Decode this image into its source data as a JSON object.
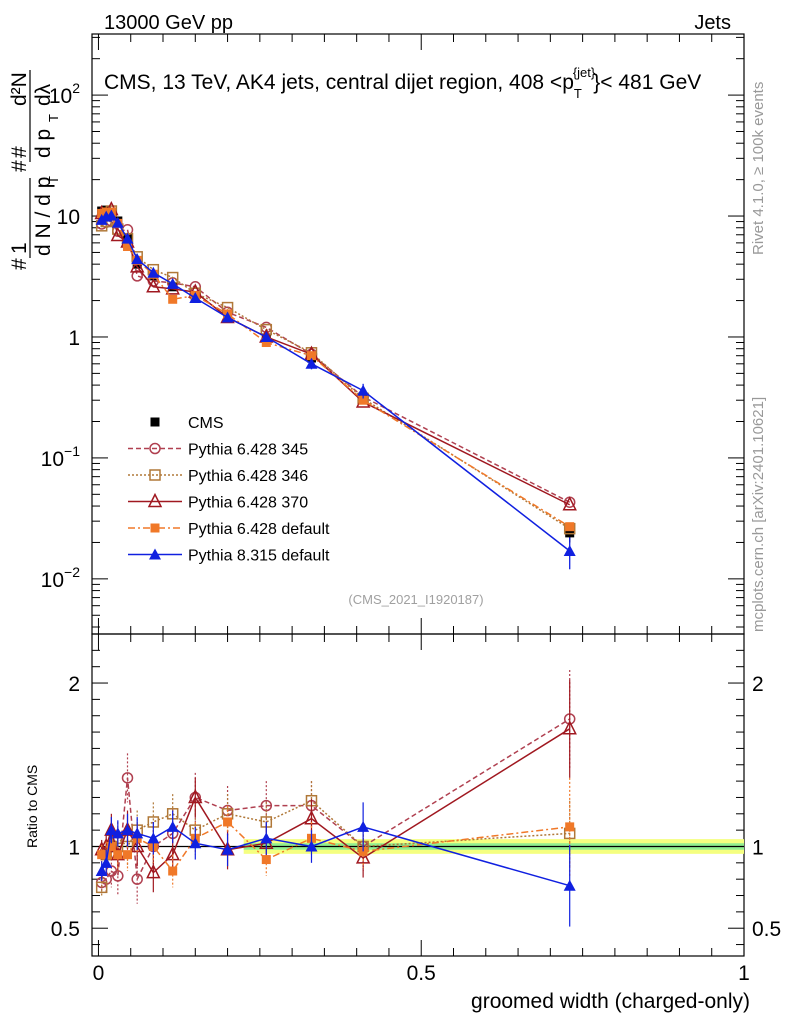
{
  "header": {
    "energy_label": "13000 GeV pp",
    "process_label": "Jets"
  },
  "side_labels": {
    "rivet": "Rivet 4.1.0, ≥ 100k events",
    "mcplots": "mcplots.cern.ch [arXiv:2401.10621]"
  },
  "analysis_id": "(CMS_2021_I1920187)",
  "chart_data": {
    "type": "line",
    "title": "CMS, 13 TeV, AK4 jets, central dijet region, 408 <p",
    "title_sub": "T",
    "title_sup": "{jet}",
    "title_tail": "}< 481 GeV",
    "xlabel": "groomed width (charged-only)",
    "ylabel_top": {
      "one": "1",
      "dn": "d N / d p",
      "hash": "#",
      "frac2_num": "d²N",
      "frac2_den": "d p",
      "dlambda": "dλ",
      "T": "T"
    },
    "ylabel_bottom": "Ratio to CMS",
    "x_range": [
      -0.01,
      1.0
    ],
    "x_ticks": [
      0,
      0.5,
      1
    ],
    "x_tick_labels": [
      "0",
      "0.5",
      "1"
    ],
    "main": {
      "scale": "log",
      "y_range": [
        0.0035,
        320
      ],
      "y_tick_values": [
        100,
        10,
        1,
        0.1,
        0.01
      ],
      "y_tick_labels": [
        {
          "base": "10",
          "exp": "2"
        },
        {
          "base": "10",
          "exp": ""
        },
        {
          "base": "1",
          "exp": ""
        },
        {
          "base": "10",
          "exp": "−1"
        },
        {
          "base": "10",
          "exp": "−2"
        }
      ]
    },
    "ratio": {
      "y_range": [
        0.33,
        2.3
      ],
      "y_ticks": [
        0.5,
        1,
        2
      ],
      "y_tick_labels": [
        "0.5",
        "1",
        "2"
      ],
      "band_outer": {
        "x": [
          0.225,
          1.0
        ],
        "lo": 0.955,
        "hi": 1.045
      },
      "band_inner": {
        "x": [
          0.225,
          1.0
        ],
        "lo": 0.98,
        "hi": 1.02
      }
    },
    "x": [
      0.005,
      0.012,
      0.02,
      0.03,
      0.045,
      0.06,
      0.085,
      0.115,
      0.15,
      0.2,
      0.26,
      0.33,
      0.41,
      0.73
    ],
    "series": [
      {
        "name": "CMS",
        "color": "#000000",
        "marker": "square-filled",
        "dash": "none",
        "values": [
          11,
          11.2,
          10.7,
          9.1,
          6.6,
          4.0,
          3.2,
          2.6,
          2.1,
          1.45,
          0.98,
          0.67,
          0.32,
          0.024
        ],
        "errors": [
          0.6,
          0.6,
          0.6,
          0.5,
          0.4,
          0.25,
          0.2,
          0.15,
          0.12,
          0.08,
          0.06,
          0.04,
          0.03,
          0.004
        ],
        "ratios": null
      },
      {
        "name": "Pythia 6.428 345",
        "color": "#b04050",
        "marker": "circle-open",
        "dash": "5,3",
        "values": [
          8.6,
          8.9,
          9.1,
          7.5,
          7.7,
          3.2,
          2.9,
          2.8,
          2.6,
          1.6,
          1.2,
          0.72,
          0.32,
          0.043
        ],
        "errors": null,
        "ratios": [
          0.78,
          0.8,
          0.85,
          0.82,
          1.42,
          0.8,
          1.0,
          1.08,
          1.3,
          1.22,
          1.25,
          1.25,
          1.0,
          1.78
        ],
        "ratio_errors": [
          0.06,
          0.08,
          0.1,
          0.12,
          0.15,
          0.15,
          0.15,
          0.15,
          0.15,
          0.15,
          0.15,
          0.15,
          0.15,
          0.3
        ]
      },
      {
        "name": "Pythia 6.428 346",
        "color": "#b07838",
        "marker": "square-open",
        "dash": "2,2",
        "values": [
          8.3,
          9.0,
          11.0,
          7.8,
          6.5,
          4.6,
          3.6,
          3.1,
          2.3,
          1.75,
          1.15,
          0.74,
          0.31,
          0.026
        ],
        "errors": null,
        "ratios": [
          0.75,
          0.95,
          1.0,
          1.05,
          1.0,
          1.1,
          1.15,
          1.2,
          1.1,
          1.2,
          1.15,
          1.28,
          1.0,
          1.08
        ],
        "ratio_errors": [
          0.06,
          0.08,
          0.08,
          0.1,
          0.12,
          0.12,
          0.12,
          0.12,
          0.12,
          0.12,
          0.12,
          0.12,
          0.12,
          0.2
        ]
      },
      {
        "name": "Pythia 6.428 370",
        "color": "#a01820",
        "marker": "triangle-open",
        "dash": "none",
        "values": [
          10.5,
          10.2,
          11.3,
          6.9,
          6.1,
          3.8,
          2.6,
          2.5,
          2.35,
          1.45,
          1.0,
          0.72,
          0.29,
          0.041
        ],
        "errors": null,
        "ratios": [
          0.98,
          1.0,
          1.1,
          0.95,
          1.1,
          1.0,
          0.84,
          0.95,
          1.3,
          0.98,
          1.02,
          1.17,
          0.93,
          1.72
        ],
        "ratio_errors": [
          0.06,
          0.08,
          0.1,
          0.1,
          0.12,
          0.12,
          0.12,
          0.12,
          0.12,
          0.12,
          0.12,
          0.12,
          0.12,
          0.3
        ]
      },
      {
        "name": "Pythia 6.428 default",
        "color": "#f07828",
        "marker": "square-filled",
        "dash": "7,3,2,3",
        "values": [
          10.5,
          10.8,
          10.8,
          8.7,
          5.6,
          4.3,
          3.3,
          2.05,
          2.2,
          1.55,
          0.9,
          0.7,
          0.3,
          0.027
        ],
        "errors": null,
        "ratios": [
          0.95,
          0.95,
          1.0,
          0.95,
          0.95,
          1.05,
          1.0,
          0.85,
          1.05,
          1.15,
          0.92,
          1.05,
          0.97,
          1.12
        ],
        "ratio_errors": [
          0.06,
          0.08,
          0.08,
          0.1,
          0.1,
          0.1,
          0.1,
          0.1,
          0.1,
          0.1,
          0.1,
          0.1,
          0.1,
          0.3
        ]
      },
      {
        "name": "Pythia 8.315 default",
        "color": "#1020e0",
        "marker": "triangle-filled",
        "dash": "none",
        "values": [
          9.3,
          9.9,
          10.1,
          8.8,
          6.5,
          4.4,
          3.4,
          2.75,
          2.1,
          1.45,
          1.0,
          0.6,
          0.36,
          0.017
        ],
        "errors": [
          0.5,
          0.5,
          0.5,
          0.4,
          0.3,
          0.25,
          0.2,
          0.15,
          0.12,
          0.1,
          0.08,
          0.06,
          0.05,
          0.005
        ],
        "ratios": [
          0.85,
          0.9,
          1.1,
          1.08,
          1.1,
          1.08,
          1.05,
          1.12,
          1.02,
          0.98,
          1.05,
          1.0,
          1.12,
          0.76
        ],
        "ratio_errors": [
          0.06,
          0.08,
          0.08,
          0.08,
          0.1,
          0.1,
          0.1,
          0.1,
          0.1,
          0.1,
          0.1,
          0.1,
          0.15,
          0.25
        ]
      }
    ],
    "legend_position": "lower-left"
  }
}
